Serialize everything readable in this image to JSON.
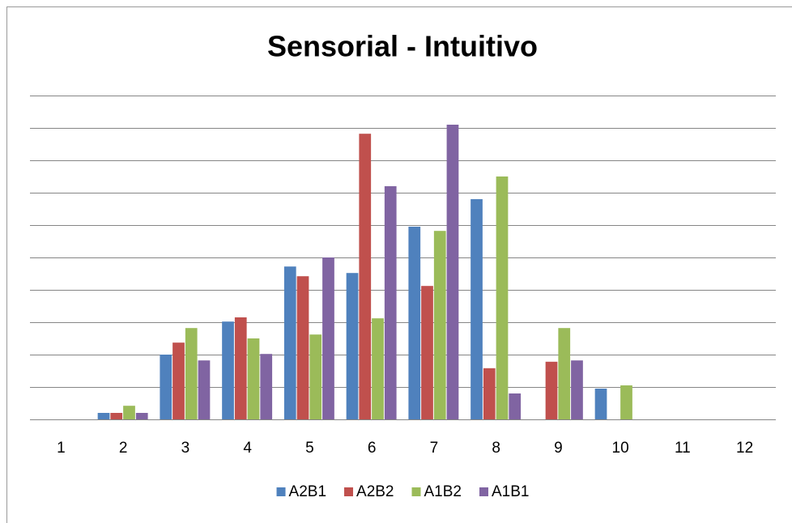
{
  "chart_data": {
    "type": "bar",
    "title": "Sensorial - Intuitivo",
    "categories": [
      "1",
      "2",
      "3",
      "4",
      "5",
      "6",
      "7",
      "8",
      "9",
      "10",
      "11",
      "12"
    ],
    "series": [
      {
        "name": "A2B1",
        "color": "#4f81bd",
        "values": [
          0,
          0.2,
          2.0,
          3.02,
          4.72,
          4.52,
          5.95,
          6.8,
          0,
          0.95,
          0,
          0
        ]
      },
      {
        "name": "A2B2",
        "color": "#c0504d",
        "values": [
          0,
          0.2,
          2.37,
          3.15,
          4.42,
          8.82,
          4.12,
          1.58,
          1.78,
          0,
          0,
          0
        ]
      },
      {
        "name": "A1B2",
        "color": "#9bbb59",
        "values": [
          0,
          0.42,
          2.82,
          2.5,
          2.62,
          3.12,
          5.82,
          7.5,
          2.82,
          1.05,
          0,
          0
        ]
      },
      {
        "name": "A1B1",
        "color": "#8064a2",
        "values": [
          0,
          0.2,
          1.82,
          2.02,
          5.0,
          7.2,
          9.1,
          0.8,
          1.82,
          0,
          0,
          0
        ]
      }
    ],
    "ylim": [
      0,
      10
    ],
    "yticks": [
      0,
      1,
      2,
      3,
      4,
      5,
      6,
      7,
      8,
      9,
      10
    ],
    "grid": true,
    "legend": "bottom"
  }
}
